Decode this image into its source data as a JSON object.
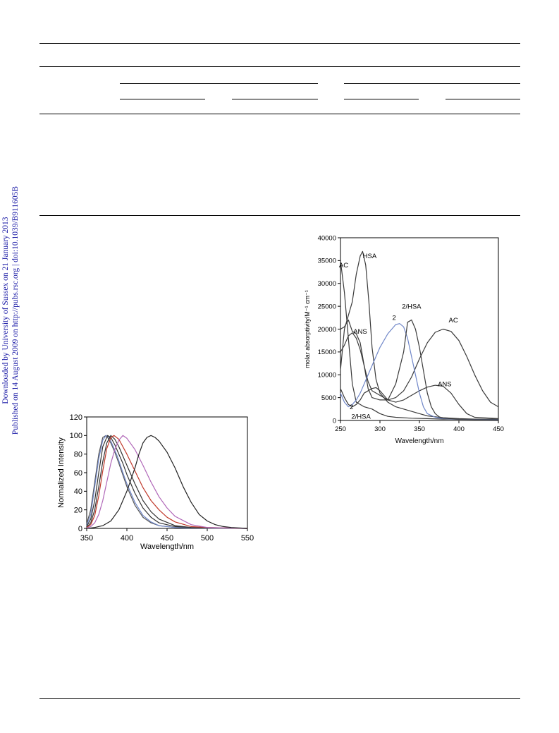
{
  "sidebar": {
    "line1": "Downloaded by University of Sussex on 21 January 2013",
    "line2": "Published on 14 August 2009 on http://pubs.rsc.org | doi:10.1039/B911605B",
    "color": "#1a1aa6"
  },
  "chart_data": [
    {
      "type": "line",
      "title": "",
      "xlabel": "Wavelength/nm",
      "ylabel": "molar absorptivity/M⁻¹ cm⁻¹",
      "xlim": [
        250,
        450
      ],
      "ylim": [
        0,
        40000
      ],
      "xticks": [
        250,
        300,
        350,
        400,
        450
      ],
      "yticks": [
        0,
        5000,
        10000,
        15000,
        20000,
        25000,
        30000,
        35000,
        40000
      ],
      "grid": false,
      "labels": [
        {
          "text": "HSA",
          "x": 287,
          "y": 35500
        },
        {
          "text": "AC",
          "x": 254,
          "y": 33500
        },
        {
          "text": "2",
          "x": 318,
          "y": 22000
        },
        {
          "text": "2/HSA",
          "x": 340,
          "y": 24500
        },
        {
          "text": "AC",
          "x": 393,
          "y": 21500
        },
        {
          "text": "ANS",
          "x": 275,
          "y": 19000
        },
        {
          "text": "ANS",
          "x": 382,
          "y": 7500
        },
        {
          "text": "2",
          "x": 264,
          "y": 2500
        },
        {
          "text": "2/HSA",
          "x": 276,
          "y": 400
        }
      ],
      "series": [
        {
          "color": "#3a3a3a",
          "x": [
            250,
            255,
            260,
            265,
            270,
            275,
            278,
            282,
            286,
            290,
            295,
            300,
            310,
            320,
            330,
            340,
            350,
            360,
            380,
            400,
            420,
            450
          ],
          "y": [
            11000,
            20000,
            23000,
            26000,
            32000,
            36000,
            37000,
            34000,
            26000,
            16000,
            9000,
            6000,
            4000,
            3000,
            2500,
            2000,
            1500,
            1000,
            600,
            400,
            300,
            200
          ]
        },
        {
          "color": "#3a3a3a",
          "x": [
            250,
            255,
            260,
            265,
            270,
            280,
            290,
            300,
            310,
            320,
            340,
            360,
            380,
            400,
            420,
            450
          ],
          "y": [
            35000,
            28000,
            18000,
            8000,
            4000,
            3000,
            2500,
            1500,
            900,
            700,
            500,
            400,
            300,
            250,
            200,
            200
          ]
        },
        {
          "color": "#3a3a3a",
          "x": [
            250,
            255,
            260,
            265,
            270,
            275,
            280,
            285,
            290,
            300,
            310,
            320,
            330,
            340,
            350,
            360,
            370,
            380,
            390,
            400,
            410,
            420,
            430,
            440,
            450
          ],
          "y": [
            20000,
            20500,
            22000,
            19500,
            19000,
            17000,
            12000,
            7000,
            5000,
            4500,
            4500,
            5000,
            6500,
            9500,
            13500,
            17000,
            19300,
            20000,
            19500,
            17500,
            14000,
            10000,
            6500,
            4000,
            3000
          ]
        },
        {
          "color": "#3a3a3a",
          "x": [
            250,
            255,
            260,
            265,
            270,
            275,
            280,
            285,
            290,
            300,
            310,
            320,
            330,
            340,
            350,
            360,
            370,
            380,
            390,
            400,
            410,
            420,
            450
          ],
          "y": [
            15000,
            16500,
            18500,
            19200,
            18000,
            15500,
            12000,
            8500,
            6500,
            5500,
            4500,
            4000,
            4500,
            5500,
            6500,
            7300,
            7700,
            7500,
            6000,
            3500,
            1500,
            700,
            400
          ]
        },
        {
          "color": "#6f86c8",
          "x": [
            250,
            255,
            260,
            265,
            270,
            275,
            280,
            290,
            300,
            310,
            320,
            325,
            330,
            335,
            340,
            345,
            350,
            355,
            360,
            370,
            380,
            400,
            450
          ],
          "y": [
            6000,
            4000,
            3000,
            3500,
            4500,
            6000,
            8000,
            12000,
            16000,
            19000,
            21000,
            21200,
            20500,
            18000,
            14000,
            10000,
            6000,
            3000,
            1500,
            700,
            400,
            300,
            200
          ]
        },
        {
          "color": "#3a3a3a",
          "x": [
            250,
            255,
            260,
            265,
            270,
            275,
            280,
            290,
            295,
            300,
            310,
            320,
            330,
            335,
            340,
            345,
            350,
            355,
            360,
            365,
            370,
            375,
            380,
            390,
            400,
            450
          ],
          "y": [
            7000,
            5000,
            3500,
            3000,
            3500,
            4500,
            6000,
            7000,
            7200,
            6500,
            4500,
            8000,
            15000,
            21500,
            22000,
            20000,
            16000,
            11000,
            6000,
            3000,
            1500,
            800,
            500,
            400,
            300,
            300
          ]
        }
      ]
    },
    {
      "type": "line",
      "title": "",
      "xlabel": "Wavelength/nm",
      "ylabel": "Normalized Intensity",
      "xlim": [
        350,
        550
      ],
      "ylim": [
        0,
        120
      ],
      "xticks": [
        350,
        400,
        450,
        500,
        550
      ],
      "yticks": [
        0,
        20,
        40,
        60,
        80,
        100,
        120
      ],
      "grid": false,
      "series": [
        {
          "color": "#555555",
          "x": [
            350,
            355,
            360,
            365,
            370,
            374,
            376,
            380,
            385,
            390,
            400,
            410,
            420,
            430,
            440,
            460,
            480,
            500,
            550
          ],
          "y": [
            5,
            20,
            50,
            80,
            98,
            100,
            98,
            92,
            82,
            70,
            45,
            25,
            12,
            6,
            3,
            1,
            0.5,
            0.3,
            0
          ]
        },
        {
          "color": "#6f86c8",
          "x": [
            350,
            355,
            360,
            365,
            370,
            374,
            378,
            382,
            388,
            395,
            400,
            410,
            420,
            430,
            440,
            460,
            480,
            500,
            550
          ],
          "y": [
            3,
            15,
            45,
            75,
            95,
            100,
            98,
            90,
            78,
            60,
            48,
            28,
            14,
            7,
            3,
            1,
            0.5,
            0.3,
            0
          ]
        },
        {
          "color": "#333333",
          "x": [
            350,
            355,
            360,
            365,
            370,
            376,
            380,
            385,
            390,
            395,
            400,
            410,
            420,
            430,
            440,
            460,
            480,
            500,
            550
          ],
          "y": [
            2,
            10,
            30,
            60,
            88,
            100,
            98,
            90,
            80,
            70,
            58,
            38,
            22,
            12,
            6,
            2,
            1,
            0.5,
            0
          ]
        },
        {
          "color": "#333333",
          "x": [
            350,
            355,
            360,
            365,
            370,
            375,
            380,
            385,
            390,
            400,
            410,
            420,
            430,
            440,
            460,
            480,
            500,
            550
          ],
          "y": [
            1,
            6,
            20,
            45,
            72,
            92,
            100,
            96,
            88,
            68,
            48,
            30,
            18,
            10,
            3,
            1,
            0.5,
            0
          ]
        },
        {
          "color": "#c0392b",
          "x": [
            350,
            355,
            360,
            365,
            370,
            375,
            380,
            384,
            390,
            400,
            410,
            420,
            430,
            440,
            450,
            460,
            480,
            500,
            550
          ],
          "y": [
            1,
            4,
            14,
            35,
            62,
            86,
            98,
            100,
            96,
            80,
            62,
            44,
            30,
            20,
            12,
            7,
            2,
            1,
            0
          ]
        },
        {
          "color": "#b067b8",
          "x": [
            350,
            355,
            360,
            365,
            370,
            375,
            380,
            385,
            390,
            395,
            400,
            410,
            420,
            430,
            440,
            450,
            460,
            480,
            500,
            550
          ],
          "y": [
            0.5,
            2,
            6,
            15,
            30,
            50,
            70,
            85,
            95,
            100,
            97,
            85,
            68,
            50,
            34,
            22,
            13,
            4,
            1,
            0
          ]
        },
        {
          "color": "#222222",
          "x": [
            350,
            360,
            370,
            380,
            390,
            400,
            410,
            415,
            420,
            425,
            430,
            435,
            440,
            450,
            460,
            470,
            480,
            490,
            500,
            510,
            520,
            530,
            550
          ],
          "y": [
            0,
            1,
            3,
            8,
            20,
            40,
            65,
            80,
            92,
            98,
            100,
            98,
            94,
            82,
            65,
            45,
            28,
            15,
            8,
            4,
            2,
            1,
            0
          ]
        }
      ]
    }
  ]
}
